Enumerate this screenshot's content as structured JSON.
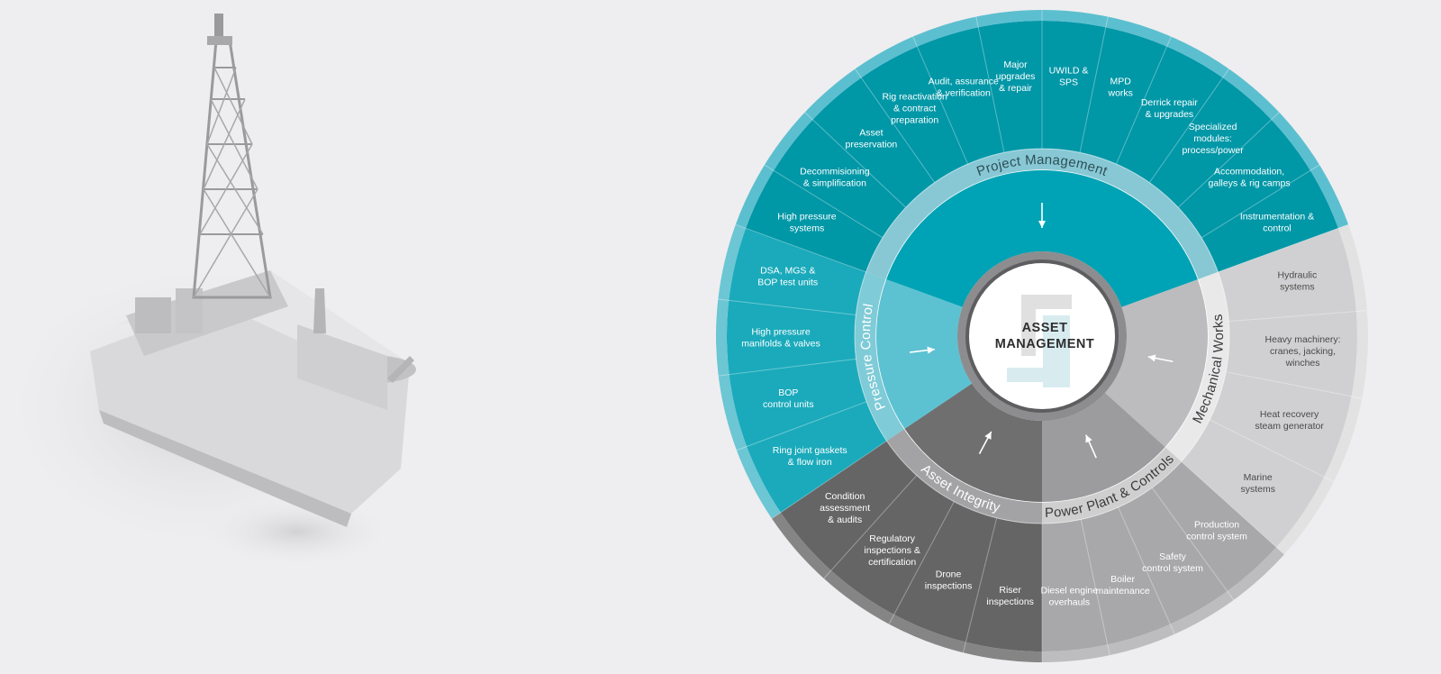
{
  "center": {
    "title_line1": "ASSET",
    "title_line2": "MANAGEMENT"
  },
  "categories": [
    {
      "name": "Project Management",
      "color": "#0097a7",
      "ring_color": "#88c8d5",
      "inner_color": "#00a3b5",
      "outer_rim": "#5cbfcf",
      "text_color": "#ffffff",
      "items": [
        "High pressure\nsystems",
        "Decommisioning\n& simplification",
        "Asset\npreservation",
        "Rig reactivation\n& contract\npreparation",
        "Audit, assurance\n& verification",
        "Major\nupgrades\n& repair",
        "UWILD &\nSPS",
        "MPD\nworks",
        "Derrick repair\n& upgrades",
        "Specialized\nmodules:\nprocess/power",
        "Accommodation,\ngalleys & rig camps",
        "Instrumentation &\ncontrol"
      ]
    },
    {
      "name": "Mechanical Works",
      "color": "#d0d0d2",
      "ring_color": "#e9e9ea",
      "inner_color": "#bcbcbe",
      "outer_rim": "#e2e2e3",
      "text_color": "#4a4a4a",
      "items": [
        "Hydraulic\nsystems",
        "Heavy machinery:\ncranes, jacking,\nwinches",
        "Heat recovery\nsteam generator",
        "Marine\nsystems"
      ]
    },
    {
      "name": "Power Plant & Controls",
      "color": "#a8a8aa",
      "ring_color": "#cfcfd0",
      "inner_color": "#9c9c9e",
      "outer_rim": "#bdbdbf",
      "text_color": "#ffffff",
      "items": [
        "Production\ncontrol system",
        "Safety\ncontrol system",
        "Boiler\nmaintenance",
        "Diesel engine\noverhauls"
      ]
    },
    {
      "name": "Asset Integrity",
      "color": "#656566",
      "ring_color": "#a3a3a5",
      "inner_color": "#6f6f70",
      "outer_rim": "#858586",
      "text_color": "#ffffff",
      "items": [
        "Riser\ninspections",
        "Drone\ninspections",
        "Regulatory\ninspections &\ncertification",
        "Condition\nassessment\n& audits"
      ]
    },
    {
      "name": "Pressure Control",
      "color": "#1aaabb",
      "ring_color": "#7fcbd7",
      "inner_color": "#5cc2d2",
      "outer_rim": "#6cc6d4",
      "text_color": "#ffffff",
      "items": [
        "Ring joint gaskets\n& flow iron",
        "BOP\ncontrol units",
        "High pressure\nmanifolds & valves",
        "DSA, MGS &\nBOP test units"
      ]
    }
  ],
  "icons": {
    "center_logo": "company-logo-icon",
    "arrow": "arrow-icon",
    "ship": "drillship-image"
  }
}
